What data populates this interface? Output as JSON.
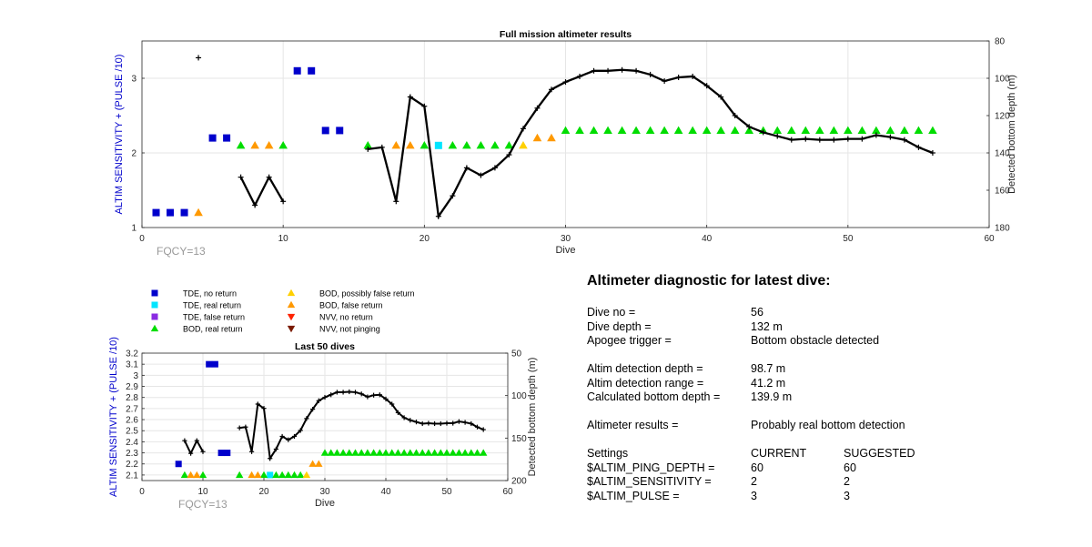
{
  "chart_data": [
    {
      "type": "scatter",
      "title": "Full mission altimeter results",
      "xlabel": "Dive",
      "ylabel_left": "ALTIM SENSITIVITY + (PULSE /10)",
      "ylabel_right": "Detected bottom depth (m)",
      "xlim": [
        0,
        60
      ],
      "ylim_left": [
        1,
        3.5
      ],
      "ylim_right": [
        180,
        80
      ],
      "x_ticks": [
        "0",
        "10",
        "20",
        "30",
        "40",
        "50",
        "60"
      ],
      "y_left_ticks": [
        "1",
        "2",
        "3"
      ],
      "y_right_ticks": [
        "80",
        "100",
        "120",
        "140",
        "160",
        "180"
      ],
      "grid": true,
      "annotation": "FQCY=13",
      "markers": {
        "tde_no_return": [
          [
            1,
            1.2
          ],
          [
            2,
            1.2
          ],
          [
            3,
            1.2
          ],
          [
            5,
            2.2
          ],
          [
            6,
            2.2
          ],
          [
            11,
            3.1
          ],
          [
            12,
            3.1
          ],
          [
            13,
            2.3
          ],
          [
            14,
            2.3
          ]
        ],
        "tde_real_return": [
          [
            21,
            2.1
          ]
        ],
        "bod_real_return": [
          [
            7,
            2.1
          ],
          [
            10,
            2.1
          ],
          [
            16,
            2.1
          ],
          [
            20,
            2.1
          ],
          [
            22,
            2.1
          ],
          [
            23,
            2.1
          ],
          [
            24,
            2.1
          ],
          [
            25,
            2.1
          ],
          [
            26,
            2.1
          ],
          [
            30,
            2.3
          ],
          [
            31,
            2.3
          ],
          [
            32,
            2.3
          ],
          [
            33,
            2.3
          ],
          [
            34,
            2.3
          ],
          [
            35,
            2.3
          ],
          [
            36,
            2.3
          ],
          [
            37,
            2.3
          ],
          [
            38,
            2.3
          ],
          [
            39,
            2.3
          ],
          [
            40,
            2.3
          ],
          [
            41,
            2.3
          ],
          [
            42,
            2.3
          ],
          [
            43,
            2.3
          ],
          [
            44,
            2.3
          ],
          [
            45,
            2.3
          ],
          [
            46,
            2.3
          ],
          [
            47,
            2.3
          ],
          [
            48,
            2.3
          ],
          [
            49,
            2.3
          ],
          [
            50,
            2.3
          ],
          [
            51,
            2.3
          ],
          [
            52,
            2.3
          ],
          [
            53,
            2.3
          ],
          [
            54,
            2.3
          ],
          [
            55,
            2.3
          ],
          [
            56,
            2.3
          ]
        ],
        "bod_possibly_false": [
          [
            27,
            2.1
          ]
        ],
        "bod_false_return": [
          [
            4,
            1.2
          ],
          [
            8,
            2.1
          ],
          [
            9,
            2.1
          ],
          [
            18,
            2.1
          ],
          [
            19,
            2.1
          ],
          [
            28,
            2.2
          ],
          [
            29,
            2.2
          ]
        ]
      },
      "depth_series": [
        [
          [
            4,
            89
          ]
        ],
        [
          [
            7,
            153
          ],
          [
            8,
            168
          ],
          [
            9,
            153
          ],
          [
            10,
            166
          ]
        ],
        [
          [
            16,
            138
          ],
          [
            17,
            137
          ],
          [
            18,
            166
          ],
          [
            19,
            110
          ],
          [
            20,
            115
          ],
          [
            21,
            174
          ],
          [
            22,
            163
          ],
          [
            23,
            148
          ],
          [
            24,
            152
          ],
          [
            25,
            148
          ],
          [
            26,
            141
          ],
          [
            27,
            127
          ],
          [
            28,
            116
          ],
          [
            29,
            106
          ],
          [
            30,
            102
          ],
          [
            31,
            99
          ],
          [
            32,
            96
          ],
          [
            33,
            96
          ],
          [
            34,
            95.5
          ],
          [
            35,
            96
          ],
          [
            36,
            98
          ],
          [
            37,
            101.5
          ],
          [
            38,
            99.5
          ],
          [
            39,
            99
          ],
          [
            40,
            104
          ],
          [
            41,
            110
          ],
          [
            42,
            120
          ],
          [
            43,
            126
          ],
          [
            44,
            129
          ],
          [
            45,
            131
          ],
          [
            46,
            133
          ],
          [
            47,
            132.5
          ],
          [
            48,
            133
          ],
          [
            49,
            133
          ],
          [
            50,
            132.5
          ],
          [
            51,
            132.5
          ],
          [
            52,
            130.5
          ],
          [
            53,
            131.5
          ],
          [
            54,
            133
          ],
          [
            55,
            137
          ],
          [
            56,
            140
          ]
        ]
      ]
    },
    {
      "type": "scatter",
      "title": "Last 50 dives",
      "xlabel": "Dive",
      "ylabel_left": "ALTIM SENSITIVITY + (PULSE /10)",
      "ylabel_right": "Detected bottom depth (m)",
      "xlim": [
        0,
        60
      ],
      "ylim_left": [
        2.05,
        3.2
      ],
      "ylim_right": [
        200,
        50
      ],
      "x_ticks": [
        "0",
        "10",
        "20",
        "30",
        "40",
        "50",
        "60"
      ],
      "y_left_ticks": [
        "2.1",
        "2.2",
        "2.3",
        "2.4",
        "2.5",
        "2.6",
        "2.7",
        "2.8",
        "2.9",
        "3",
        "3.1",
        "3.2"
      ],
      "y_right_ticks": [
        "50",
        "100",
        "150",
        "200"
      ],
      "grid": true,
      "annotation": "FQCY=13",
      "markers": {
        "tde_no_return": [
          [
            6,
            2.2
          ],
          [
            11,
            3.1
          ],
          [
            12,
            3.1
          ],
          [
            13,
            2.3
          ],
          [
            14,
            2.3
          ]
        ],
        "tde_real_return": [
          [
            21,
            2.1
          ]
        ],
        "bod_real_return": [
          [
            7,
            2.1
          ],
          [
            10,
            2.1
          ],
          [
            16,
            2.1
          ],
          [
            20,
            2.1
          ],
          [
            22,
            2.1
          ],
          [
            23,
            2.1
          ],
          [
            24,
            2.1
          ],
          [
            25,
            2.1
          ],
          [
            26,
            2.1
          ],
          [
            30,
            2.3
          ],
          [
            31,
            2.3
          ],
          [
            32,
            2.3
          ],
          [
            33,
            2.3
          ],
          [
            34,
            2.3
          ],
          [
            35,
            2.3
          ],
          [
            36,
            2.3
          ],
          [
            37,
            2.3
          ],
          [
            38,
            2.3
          ],
          [
            39,
            2.3
          ],
          [
            40,
            2.3
          ],
          [
            41,
            2.3
          ],
          [
            42,
            2.3
          ],
          [
            43,
            2.3
          ],
          [
            44,
            2.3
          ],
          [
            45,
            2.3
          ],
          [
            46,
            2.3
          ],
          [
            47,
            2.3
          ],
          [
            48,
            2.3
          ],
          [
            49,
            2.3
          ],
          [
            50,
            2.3
          ],
          [
            51,
            2.3
          ],
          [
            52,
            2.3
          ],
          [
            53,
            2.3
          ],
          [
            54,
            2.3
          ],
          [
            55,
            2.3
          ],
          [
            56,
            2.3
          ]
        ],
        "bod_possibly_false": [
          [
            27,
            2.1
          ]
        ],
        "bod_false_return": [
          [
            8,
            2.1
          ],
          [
            9,
            2.1
          ],
          [
            18,
            2.1
          ],
          [
            19,
            2.1
          ],
          [
            28,
            2.2
          ],
          [
            29,
            2.2
          ]
        ]
      },
      "depth_series": [
        [
          [
            7,
            153
          ],
          [
            8,
            168
          ],
          [
            9,
            153
          ],
          [
            10,
            166
          ]
        ],
        [
          [
            16,
            138
          ],
          [
            17,
            137
          ],
          [
            18,
            166
          ],
          [
            19,
            110
          ],
          [
            20,
            115
          ],
          [
            21,
            174
          ],
          [
            22,
            163
          ],
          [
            23,
            148
          ],
          [
            24,
            152
          ],
          [
            25,
            148
          ],
          [
            26,
            141
          ],
          [
            27,
            127
          ],
          [
            28,
            116
          ],
          [
            29,
            106
          ],
          [
            30,
            102
          ],
          [
            31,
            99
          ],
          [
            32,
            96
          ],
          [
            33,
            96
          ],
          [
            34,
            95.5
          ],
          [
            35,
            96
          ],
          [
            36,
            98
          ],
          [
            37,
            101.5
          ],
          [
            38,
            99.5
          ],
          [
            39,
            99
          ],
          [
            40,
            104
          ],
          [
            41,
            110
          ],
          [
            42,
            120
          ],
          [
            43,
            126
          ],
          [
            44,
            129
          ],
          [
            45,
            131
          ],
          [
            46,
            133
          ],
          [
            47,
            132.5
          ],
          [
            48,
            133
          ],
          [
            49,
            133
          ],
          [
            50,
            132.5
          ],
          [
            51,
            132.5
          ],
          [
            52,
            130.5
          ],
          [
            53,
            131.5
          ],
          [
            54,
            133
          ],
          [
            55,
            137
          ],
          [
            56,
            140
          ]
        ]
      ]
    }
  ],
  "legend": [
    {
      "label": "TDE, no return",
      "shape": "square",
      "color": "#0000cc"
    },
    {
      "label": "TDE, real return",
      "shape": "square",
      "color": "#00e5ff"
    },
    {
      "label": "TDE, false return",
      "shape": "square",
      "color": "#8a2be2"
    },
    {
      "label": "BOD, real return",
      "shape": "triangle-up",
      "color": "#00dd00"
    },
    {
      "label": "BOD, possibly false return",
      "shape": "triangle-up",
      "color": "#ffd000"
    },
    {
      "label": "BOD, false return",
      "shape": "triangle-up",
      "color": "#ff9900"
    },
    {
      "label": "NVV, no return",
      "shape": "triangle-down",
      "color": "#ff2200"
    },
    {
      "label": "NVV, not pinging",
      "shape": "triangle-down",
      "color": "#7a1a00"
    }
  ],
  "colors": {
    "axis_label_blue": "#0000cc",
    "depth_line": "#000000",
    "grid": "#e6e6e6",
    "annotation_gray": "#999999"
  },
  "diagnostic": {
    "title": "Altimeter diagnostic for latest dive:",
    "dive_no_label": "Dive no =",
    "dive_no": "56",
    "dive_depth_label": "Dive depth =",
    "dive_depth": "132 m",
    "apogee_label": "Apogee trigger =",
    "apogee": "Bottom obstacle detected",
    "altim_depth_label": "Altim detection depth =",
    "altim_depth": "98.7 m",
    "altim_range_label": "Altim detection range =",
    "altim_range": "41.2 m",
    "calc_depth_label": "Calculated bottom depth =",
    "calc_depth": "139.9 m",
    "results_label": "Altimeter results =",
    "results": "Probably real bottom detection",
    "settings_label": "Settings",
    "current_label": "CURRENT",
    "suggested_label": "SUGGESTED",
    "ping_label": "$ALTIM_PING_DEPTH =",
    "ping_current": "60",
    "ping_suggested": "60",
    "sens_label": "$ALTIM_SENSITIVITY =",
    "sens_current": "2",
    "sens_suggested": "2",
    "pulse_label": "$ALTIM_PULSE =",
    "pulse_current": "3",
    "pulse_suggested": "3"
  }
}
